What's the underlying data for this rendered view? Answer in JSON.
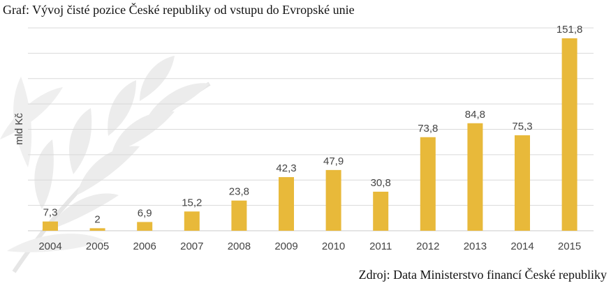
{
  "header": {
    "title": "Graf: Vývoj čisté pozice České republiky od vstupu do Evropské unie"
  },
  "footer": {
    "source": "Zdroj: Data Ministerstvo financí České republiky"
  },
  "colors": {
    "bar": "#e8b93a",
    "grid": "#d9d9d9",
    "axis": "#c8c8c8",
    "watermark": "#e6e6e6"
  },
  "chart_data": {
    "type": "bar",
    "title": "",
    "xlabel": "",
    "ylabel": "mld Kč",
    "categories": [
      "2004",
      "2005",
      "2006",
      "2007",
      "2008",
      "2009",
      "2010",
      "2011",
      "2012",
      "2013",
      "2014",
      "2015"
    ],
    "values": [
      7.3,
      2,
      6.9,
      15.2,
      23.8,
      42.3,
      47.9,
      30.8,
      73.8,
      84.8,
      75.3,
      151.8
    ],
    "data_labels": [
      "7,3",
      "2",
      "6,9",
      "15,2",
      "23,8",
      "42,3",
      "47,9",
      "30,8",
      "73,8",
      "84,8",
      "75,3",
      "151,8"
    ],
    "ylim": [
      0,
      160
    ],
    "grid": true,
    "legend": "none"
  }
}
